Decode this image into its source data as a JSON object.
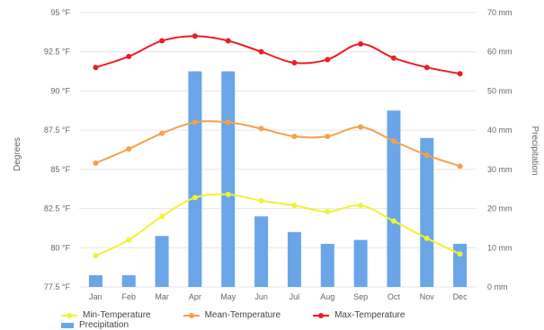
{
  "chart_data": {
    "type": "bar+line",
    "categories": [
      "Jan",
      "Feb",
      "Mar",
      "Apr",
      "May",
      "Jun",
      "Jul",
      "Aug",
      "Sep",
      "Oct",
      "Nov",
      "Dec"
    ],
    "y_left": {
      "label": "Degrees",
      "ticks": [
        "77.5 °F",
        "80 °F",
        "82.5 °F",
        "85 °F",
        "87.5 °F",
        "90 °F",
        "92.5 °F",
        "95 °F"
      ],
      "ylim": [
        77.5,
        95
      ]
    },
    "y_right": {
      "label": "Precipitation",
      "ticks": [
        "0 mm",
        "10 mm",
        "20 mm",
        "30 mm",
        "40 mm",
        "50 mm",
        "60 mm",
        "70 mm"
      ],
      "ylim": [
        0,
        70
      ]
    },
    "series": [
      {
        "name": "Precipitation",
        "type": "bar",
        "axis": "right",
        "color": "#6aa5e8",
        "values": [
          3,
          3,
          13,
          55,
          55,
          18,
          14,
          11,
          12,
          45,
          38,
          11
        ]
      },
      {
        "name": "Min-Temperature",
        "type": "line",
        "axis": "left",
        "color": "#f2f230",
        "values": [
          79.5,
          80.5,
          82,
          83.2,
          83.4,
          83,
          82.7,
          82.3,
          82.7,
          81.7,
          80.6,
          79.6
        ]
      },
      {
        "name": "Mean-Temperature",
        "type": "line",
        "axis": "left",
        "color": "#f6a04a",
        "values": [
          85.4,
          86.3,
          87.3,
          88,
          88,
          87.6,
          87.1,
          87.1,
          87.7,
          86.8,
          85.9,
          85.2
        ]
      },
      {
        "name": "Max-Temperature",
        "type": "line",
        "axis": "left",
        "color": "#ee1c25",
        "values": [
          91.5,
          92.2,
          93.2,
          93.5,
          93.2,
          92.5,
          91.8,
          92,
          93,
          92.1,
          91.5,
          91.1
        ]
      }
    ],
    "grid": "horizontal",
    "legend_position": "bottom"
  }
}
